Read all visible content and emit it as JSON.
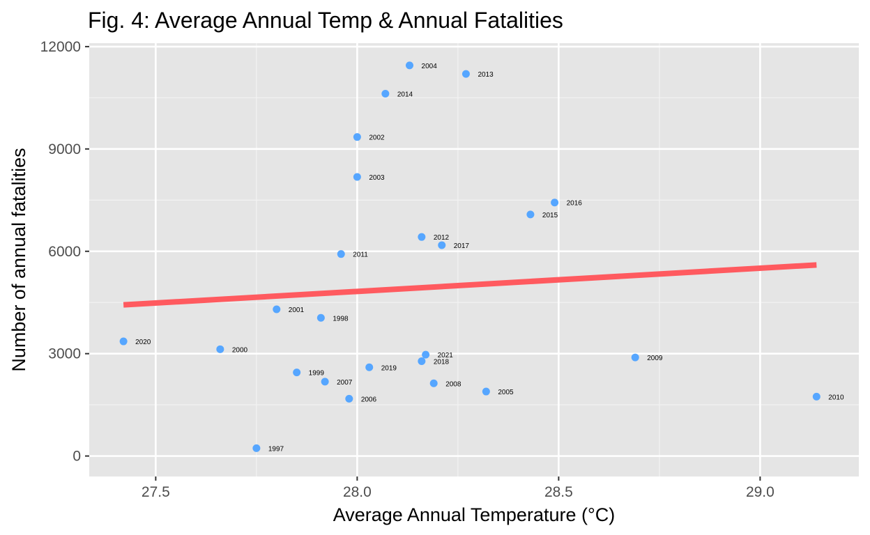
{
  "chart_data": {
    "type": "scatter",
    "title": "Fig. 4: Average Annual Temp & Annual Fatalities",
    "xlabel": "Average Annual Temperature (°C)",
    "ylabel": "Number of annual fatalities",
    "xlim": [
      27.335,
      29.245
    ],
    "ylim": [
      -600,
      12100
    ],
    "x_ticks": [
      {
        "value": 27.5,
        "label": "27.5"
      },
      {
        "value": 28.0,
        "label": "28.0"
      },
      {
        "value": 28.5,
        "label": "28.5"
      },
      {
        "value": 29.0,
        "label": "29.0"
      }
    ],
    "y_ticks": [
      {
        "value": 0,
        "label": "0"
      },
      {
        "value": 3000,
        "label": "3000"
      },
      {
        "value": 6000,
        "label": "6000"
      },
      {
        "value": 9000,
        "label": "9000"
      },
      {
        "value": 12000,
        "label": "12000"
      }
    ],
    "x_minor_ticks": [
      27.75,
      28.25,
      28.75
    ],
    "y_minor_ticks": [
      1500,
      4500,
      7500,
      10500
    ],
    "grid": true,
    "point_color": "#56a6ff",
    "trend_color": "#ff5a5f",
    "panel_color": "#e5e5e5",
    "points": [
      {
        "label": "1997",
        "x": 27.75,
        "y": 230
      },
      {
        "label": "1998",
        "x": 27.91,
        "y": 4050
      },
      {
        "label": "1999",
        "x": 27.85,
        "y": 2450
      },
      {
        "label": "2000",
        "x": 27.66,
        "y": 3130
      },
      {
        "label": "2001",
        "x": 27.8,
        "y": 4300
      },
      {
        "label": "2002",
        "x": 28.0,
        "y": 9350
      },
      {
        "label": "2003",
        "x": 28.0,
        "y": 8180
      },
      {
        "label": "2004",
        "x": 28.13,
        "y": 11450
      },
      {
        "label": "2005",
        "x": 28.32,
        "y": 1890
      },
      {
        "label": "2006",
        "x": 27.98,
        "y": 1680
      },
      {
        "label": "2007",
        "x": 27.92,
        "y": 2180
      },
      {
        "label": "2008",
        "x": 28.19,
        "y": 2130
      },
      {
        "label": "2009",
        "x": 28.69,
        "y": 2890
      },
      {
        "label": "2010",
        "x": 29.14,
        "y": 1740
      },
      {
        "label": "2011",
        "x": 27.96,
        "y": 5920
      },
      {
        "label": "2012",
        "x": 28.16,
        "y": 6420
      },
      {
        "label": "2013",
        "x": 28.27,
        "y": 11200
      },
      {
        "label": "2014",
        "x": 28.07,
        "y": 10620
      },
      {
        "label": "2015",
        "x": 28.43,
        "y": 7080
      },
      {
        "label": "2016",
        "x": 28.49,
        "y": 7430
      },
      {
        "label": "2017",
        "x": 28.21,
        "y": 6180
      },
      {
        "label": "2018",
        "x": 28.16,
        "y": 2780
      },
      {
        "label": "2019",
        "x": 28.03,
        "y": 2600
      },
      {
        "label": "2020",
        "x": 27.42,
        "y": 3360
      },
      {
        "label": "2021",
        "x": 28.17,
        "y": 2970
      }
    ],
    "trend_line": {
      "x": [
        27.42,
        29.14
      ],
      "y": [
        4430,
        5600
      ]
    }
  }
}
